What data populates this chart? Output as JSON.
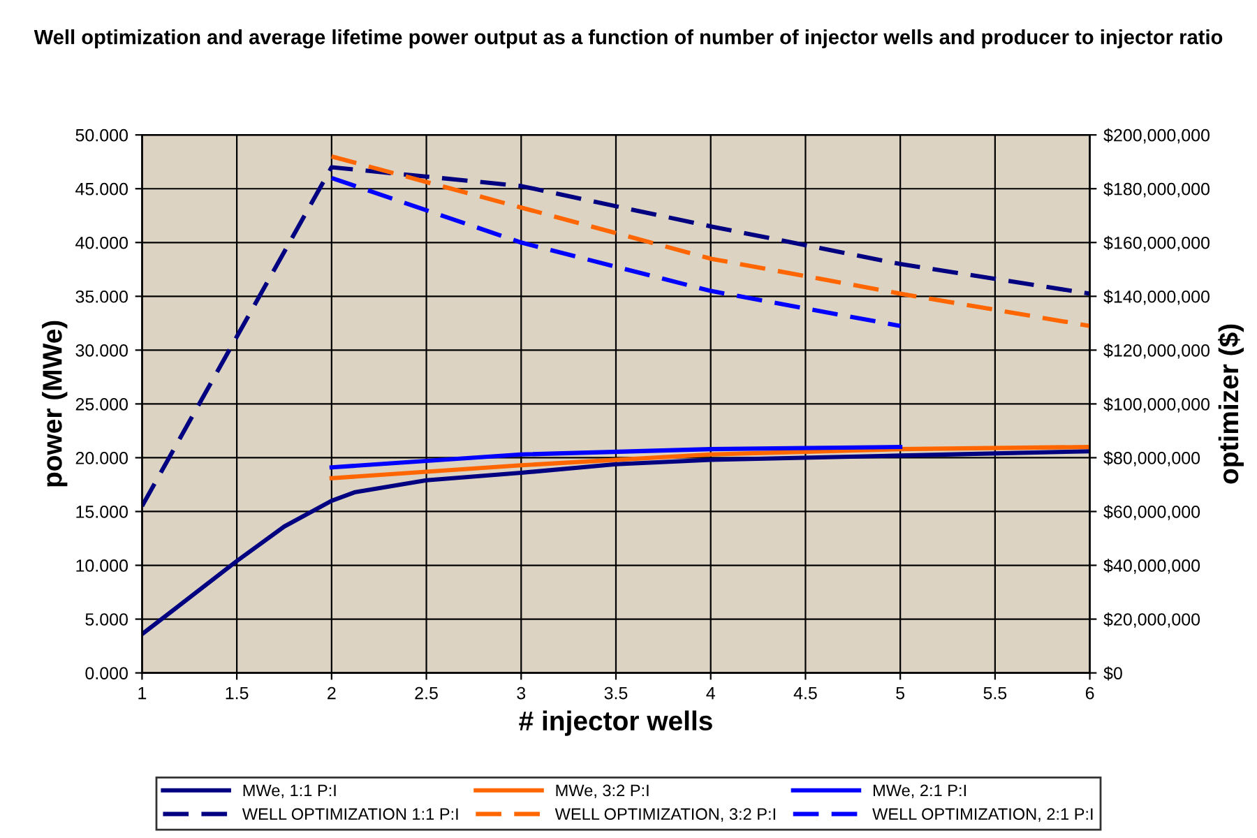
{
  "chart_data": {
    "type": "line",
    "title": "Well optimization and average lifetime power output as a function of number of injector wells and producer to injector ratio",
    "xlabel": "# injector wells",
    "ylabel": "power (MWe)",
    "y2label": "optimizer ($)",
    "xlim": [
      1,
      6
    ],
    "xticks": [
      1,
      1.5,
      2,
      2.5,
      3,
      3.5,
      4,
      4.5,
      5,
      5.5,
      6
    ],
    "ylim": [
      0,
      50
    ],
    "yticks": [
      {
        "value": 0,
        "label": "0.000"
      },
      {
        "value": 5,
        "label": "5.000"
      },
      {
        "value": 10,
        "label": "10.000"
      },
      {
        "value": 15,
        "label": "15.000"
      },
      {
        "value": 20,
        "label": "20.000"
      },
      {
        "value": 25,
        "label": "25.000"
      },
      {
        "value": 30,
        "label": "30.000"
      },
      {
        "value": 35,
        "label": "35.000"
      },
      {
        "value": 40,
        "label": "40.000"
      },
      {
        "value": 45,
        "label": "45.000"
      },
      {
        "value": 50,
        "label": "50.000"
      }
    ],
    "y2lim": [
      0,
      200000000
    ],
    "y2ticks": [
      {
        "value": 0,
        "label": "$0"
      },
      {
        "value": 20000000,
        "label": "$20,000,000"
      },
      {
        "value": 40000000,
        "label": "$40,000,000"
      },
      {
        "value": 60000000,
        "label": "$60,000,000"
      },
      {
        "value": 80000000,
        "label": "$80,000,000"
      },
      {
        "value": 100000000,
        "label": "$100,000,000"
      },
      {
        "value": 120000000,
        "label": "$120,000,000"
      },
      {
        "value": 140000000,
        "label": "$140,000,000"
      },
      {
        "value": 160000000,
        "label": "$160,000,000"
      },
      {
        "value": 180000000,
        "label": "$180,000,000"
      },
      {
        "value": 200000000,
        "label": "$200,000,000"
      }
    ],
    "grid": true,
    "legend": "bottom",
    "marker": "none",
    "series": [
      {
        "name": "MWe, 1:1 P:I",
        "color": "#000080",
        "line_style": "solid",
        "x": [
          1,
          1.5,
          1.75,
          2,
          2.125,
          2.5,
          3,
          3.5,
          4,
          5,
          6
        ],
        "values": [
          3.6,
          10.4,
          13.6,
          16.0,
          16.8,
          17.9,
          18.6,
          19.4,
          19.8,
          20.2,
          20.6
        ]
      },
      {
        "name": "MWe, 3:2 P:I",
        "color": "#ff6600",
        "line_style": "solid",
        "x": [
          2,
          3,
          4,
          5,
          6
        ],
        "values": [
          18.1,
          19.3,
          20.3,
          20.8,
          21.0
        ]
      },
      {
        "name": "MWe, 2:1 P:I",
        "color": "#0000ff",
        "line_style": "solid",
        "x": [
          2,
          3,
          4,
          5
        ],
        "values": [
          19.1,
          20.3,
          20.8,
          21.0
        ]
      },
      {
        "name": "WELL OPTIMIZATION 1:1 P:I",
        "color": "#000080",
        "line_style": "dashed",
        "axis": "y2",
        "x": [
          1,
          2,
          3,
          4,
          5,
          6
        ],
        "values": [
          62000000,
          188000000,
          181000000,
          166000000,
          152000000,
          141000000
        ]
      },
      {
        "name": "WELL OPTIMIZATION, 3:2 P:I",
        "color": "#ff6600",
        "line_style": "dashed",
        "axis": "y2",
        "x": [
          2,
          3,
          4,
          5,
          6
        ],
        "values": [
          192000000,
          173000000,
          154000000,
          141000000,
          129000000
        ]
      },
      {
        "name": "WELL OPTIMIZATION, 2:1 P:I",
        "color": "#0000ff",
        "line_style": "dashed",
        "axis": "y2",
        "x": [
          2,
          3,
          4,
          5
        ],
        "values": [
          184000000,
          160000000,
          142000000,
          129000000
        ]
      }
    ]
  }
}
